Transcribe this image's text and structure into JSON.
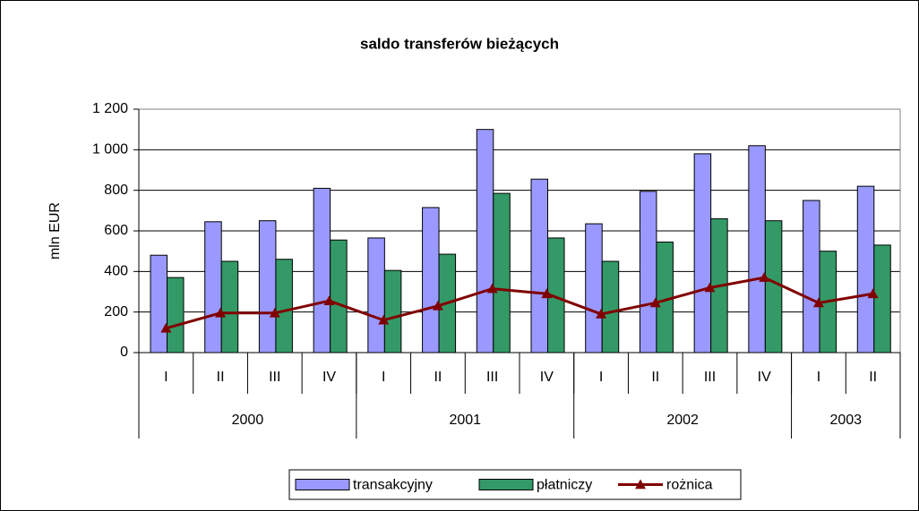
{
  "chart_data": {
    "type": "bar",
    "title": "saldo transferów bieżących",
    "y_label": "mln EUR",
    "categories": [
      "I",
      "II",
      "III",
      "IV",
      "I",
      "II",
      "III",
      "IV",
      "I",
      "II",
      "III",
      "IV",
      "I",
      "II"
    ],
    "year_groups": [
      {
        "label": "2000",
        "count": 4
      },
      {
        "label": "2001",
        "count": 4
      },
      {
        "label": "2002",
        "count": 4
      },
      {
        "label": "2003",
        "count": 2
      }
    ],
    "series": [
      {
        "name": "transakcyjny",
        "type": "bar",
        "color": "#9999ff",
        "values": [
          480,
          645,
          650,
          810,
          565,
          715,
          1100,
          855,
          635,
          795,
          980,
          1020,
          750,
          820
        ]
      },
      {
        "name": "płatniczy",
        "type": "bar",
        "color": "#339966",
        "values": [
          370,
          450,
          460,
          555,
          405,
          485,
          785,
          565,
          450,
          545,
          660,
          650,
          500,
          530
        ]
      },
      {
        "name": "rożnica",
        "type": "line",
        "color": "#800000",
        "values": [
          120,
          195,
          195,
          255,
          160,
          230,
          315,
          290,
          190,
          245,
          320,
          370,
          245,
          290
        ]
      }
    ],
    "ylim": [
      0,
      1200
    ],
    "yticks": [
      0,
      200,
      400,
      600,
      800,
      {
        "value": 1000,
        "label": "1 000"
      },
      {
        "value": 1200,
        "label": "1 200"
      }
    ],
    "grid": true,
    "legend": "bottom"
  }
}
